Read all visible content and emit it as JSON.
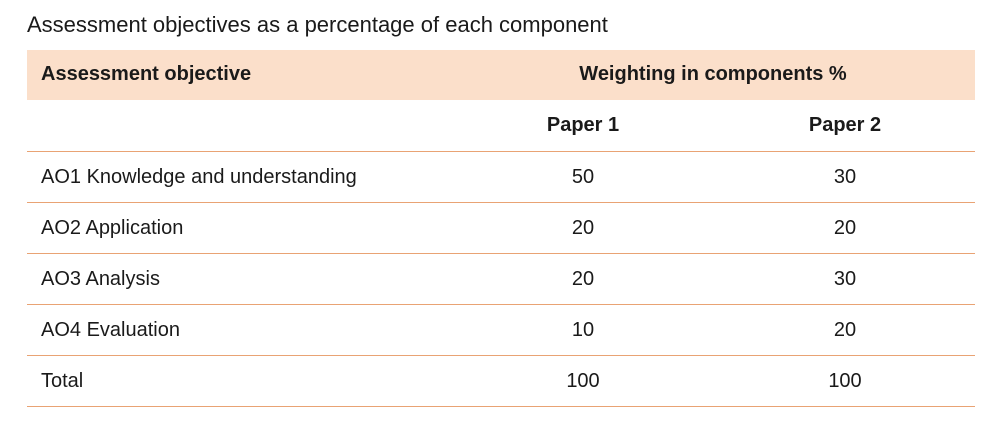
{
  "title": "Assessment objectives as a percentage of each component",
  "table": {
    "header": [
      "Assessment objective",
      "Weighting in components %"
    ],
    "subheader": [
      "Paper 1",
      "Paper 2"
    ],
    "rows": [
      [
        "AO1 Knowledge and understanding",
        50,
        30
      ],
      [
        "AO2 Application",
        20,
        20
      ],
      [
        "AO3 Analysis",
        20,
        30
      ],
      [
        "AO4 Evaluation",
        10,
        20
      ],
      [
        "Total",
        100,
        100
      ]
    ]
  }
}
